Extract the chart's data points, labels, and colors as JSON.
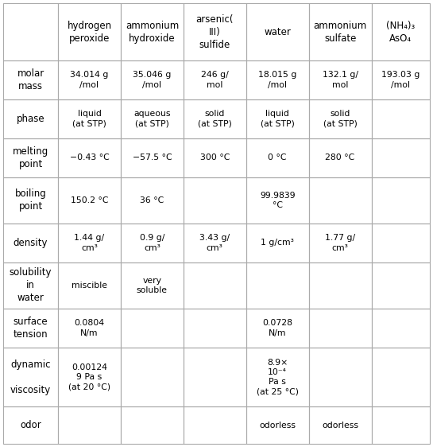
{
  "col_headers": [
    "",
    "hydrogen\nperoxide",
    "ammonium\nhydroxide",
    "arsenic(\nIII)\nsulfide",
    "water",
    "ammonium\nsulfate",
    "(NH₄)₃\nAsO₄"
  ],
  "row_headers": [
    "molar\nmass",
    "phase",
    "melting\npoint",
    "boiling\npoint",
    "density",
    "solubility\nin\nwater",
    "surface\ntension",
    "dynamic\n\nviscosity",
    "odor"
  ],
  "cell_data": [
    [
      "34.014 g\n/mol",
      "35.046 g\n/mol",
      "246 g/\nmol",
      "18.015 g\n/mol",
      "132.1 g/\nmol",
      "193.03 g\n/mol"
    ],
    [
      "liquid\n(at STP)",
      "aqueous\n(at STP)",
      "solid\n(at STP)",
      "liquid\n(at STP)",
      "solid\n(at STP)",
      ""
    ],
    [
      "−0.43 °C",
      "−57.5 °C",
      "300 °C",
      "0 °C",
      "280 °C",
      ""
    ],
    [
      "150.2 °C",
      "36 °C",
      "",
      "99.9839\n°C",
      "",
      ""
    ],
    [
      "1.44 g/\ncm³",
      "0.9 g/\ncm³",
      "3.43 g/\ncm³",
      "1 g/cm³",
      "1.77 g/\ncm³",
      ""
    ],
    [
      "miscible",
      "very\nsoluble",
      "",
      "",
      "",
      ""
    ],
    [
      "0.0804\nN/m",
      "",
      "",
      "0.0728\nN/m",
      "",
      ""
    ],
    [
      "0.00124\n9 Pa s\n(at 20 °C)",
      "",
      "",
      "8.9×\n10⁻⁴\nPa s\n(at 25 °C)",
      "",
      ""
    ],
    [
      "",
      "",
      "",
      "odorless",
      "odorless",
      ""
    ]
  ],
  "bg_color": "#ffffff",
  "line_color": "#aaaaaa",
  "text_color": "#000000",
  "col_widths_pt": [
    63,
    72,
    72,
    72,
    72,
    72,
    67
  ],
  "row_heights_pt": [
    62,
    42,
    42,
    42,
    50,
    42,
    50,
    42,
    64,
    40
  ],
  "small_text_size": 7.8,
  "header_text_size": 8.5,
  "row_label_size": 8.5,
  "phase_small_size": 6.8,
  "note_size": 6.5
}
